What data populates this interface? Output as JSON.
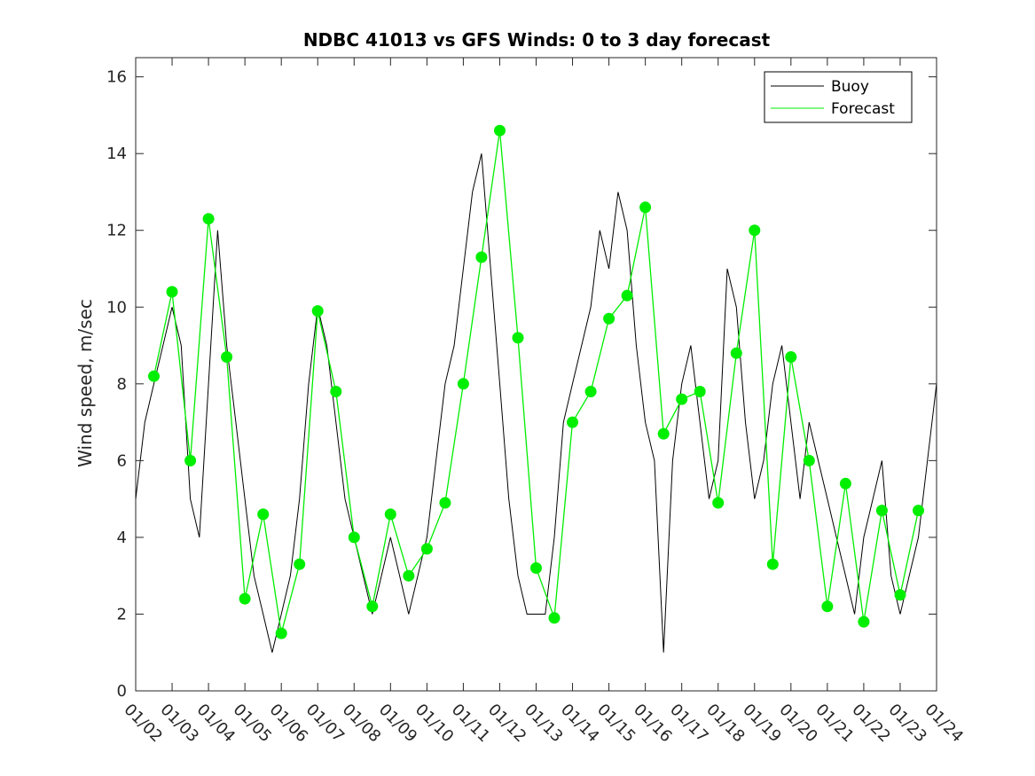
{
  "chart_data": {
    "type": "line",
    "title": "NDBC 41013 vs GFS Winds: 0 to 3 day forecast",
    "xlabel": "",
    "ylabel": "Wind speed, m/sec",
    "xlim": [
      0,
      22
    ],
    "ylim": [
      0,
      16.5
    ],
    "x_tick_labels": [
      "01/02",
      "01/03",
      "01/04",
      "01/05",
      "01/06",
      "01/07",
      "01/08",
      "01/09",
      "01/10",
      "01/11",
      "01/12",
      "01/13",
      "01/14",
      "01/15",
      "01/16",
      "01/17",
      "01/18",
      "01/19",
      "01/20",
      "01/21",
      "01/22",
      "01/23",
      "01/24"
    ],
    "y_ticks": [
      0,
      2,
      4,
      6,
      8,
      10,
      12,
      14,
      16
    ],
    "legend": {
      "position": "top-right",
      "entries": [
        {
          "label": "Buoy",
          "color": "#000000"
        },
        {
          "label": "Forecast",
          "color": "#00ee00"
        }
      ]
    },
    "series": [
      {
        "name": "Buoy",
        "color": "#000000",
        "x": [
          0,
          0.25,
          0.5,
          0.75,
          1,
          1.25,
          1.5,
          1.75,
          2,
          2.25,
          2.5,
          2.75,
          3,
          3.25,
          3.5,
          3.75,
          4,
          4.25,
          4.5,
          4.75,
          5,
          5.25,
          5.5,
          5.75,
          6,
          6.25,
          6.5,
          6.75,
          7,
          7.25,
          7.5,
          7.75,
          8,
          8.25,
          8.5,
          8.75,
          9,
          9.25,
          9.5,
          9.75,
          10,
          10.25,
          10.5,
          10.75,
          11,
          11.25,
          11.5,
          11.75,
          12,
          12.25,
          12.5,
          12.75,
          13,
          13.25,
          13.5,
          13.75,
          14,
          14.25,
          14.5,
          14.75,
          15,
          15.25,
          15.5,
          15.75,
          16,
          16.25,
          16.5,
          16.75,
          17,
          17.25,
          17.5,
          17.75,
          18,
          18.25,
          18.5,
          18.75,
          19,
          19.25,
          19.5,
          19.75,
          20,
          20.25,
          20.5,
          20.75,
          21,
          21.25,
          21.5,
          21.75,
          22
        ],
        "values": [
          5,
          7,
          8,
          9,
          10,
          9,
          5,
          4,
          8,
          12,
          9,
          7,
          5,
          3,
          2,
          1,
          2,
          3,
          5,
          8,
          10,
          9,
          7,
          5,
          4,
          3,
          2,
          3,
          4,
          3,
          2,
          3,
          4,
          6,
          8,
          9,
          11,
          13,
          14,
          11,
          8,
          5,
          3,
          2,
          2,
          2,
          4,
          7,
          8,
          9,
          10,
          12,
          11,
          13,
          12,
          9,
          7,
          6,
          1,
          6,
          8,
          9,
          7,
          5,
          6,
          11,
          10,
          7,
          5,
          6,
          8,
          9,
          7,
          5,
          7,
          6,
          5,
          4,
          3,
          2,
          4,
          5,
          6,
          3,
          2,
          3,
          4,
          6,
          8
        ]
      },
      {
        "name": "Forecast",
        "color": "#00ee00",
        "x": [
          0.5,
          1,
          1.5,
          2,
          2.5,
          3,
          3.5,
          4,
          4.5,
          5,
          5.5,
          6,
          6.5,
          7,
          7.5,
          8,
          8.5,
          9,
          9.5,
          10,
          10.5,
          11,
          11.5,
          12,
          12.5,
          13,
          13.5,
          14,
          14.5,
          15,
          15.5,
          16,
          16.5,
          17,
          17.5,
          18,
          18.5,
          19,
          19.5,
          20,
          20.5,
          21,
          21.5
        ],
        "values": [
          8.2,
          10.4,
          6.0,
          12.3,
          8.7,
          2.4,
          4.6,
          1.5,
          3.3,
          9.9,
          7.8,
          4.0,
          2.2,
          4.6,
          3.0,
          3.7,
          4.9,
          8.0,
          11.3,
          14.6,
          9.2,
          3.2,
          1.9,
          7.0,
          7.8,
          9.7,
          10.3,
          12.6,
          6.7,
          7.6,
          7.8,
          4.9,
          8.8,
          12.0,
          3.3,
          8.7,
          6.0,
          2.2,
          5.4,
          1.8,
          4.7,
          2.5,
          4.7
        ]
      }
    ]
  }
}
